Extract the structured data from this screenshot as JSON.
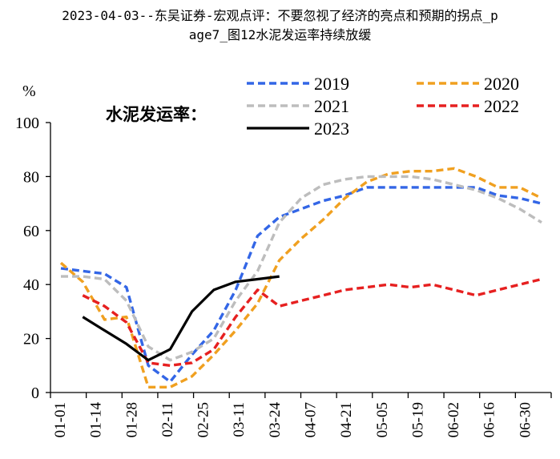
{
  "header": {
    "title_line1": "2023-04-03--东吴证券-宏观点评：不要忽视了经济的亮点和预期的拐点_p",
    "title_line2": "age7_图12水泥发运率持续放缓"
  },
  "chart_data": {
    "type": "line",
    "title": "水泥发运率：",
    "ylabel": "%",
    "xlabel": "",
    "ylim": [
      0,
      100
    ],
    "yticks": [
      0,
      20,
      40,
      60,
      80,
      100
    ],
    "xlim": [
      0,
      22
    ],
    "x_ticks": [
      "01-01",
      "01-14",
      "01-28",
      "02-11",
      "02-25",
      "03-11",
      "03-24",
      "04-07",
      "04-21",
      "05-05",
      "05-19",
      "06-02",
      "06-16",
      "06-30"
    ],
    "grid": false,
    "legend": "top",
    "series": [
      {
        "name": "2019",
        "color": "#3366e6",
        "style": "dashed",
        "x": [
          0,
          1,
          2,
          3,
          4,
          5,
          6,
          7,
          8,
          9,
          10,
          11,
          12,
          13,
          14,
          15,
          16,
          17,
          18,
          19,
          20,
          21,
          22
        ],
        "y": [
          46,
          45,
          44,
          39,
          10,
          4,
          14,
          23,
          38,
          58,
          65,
          68,
          71,
          73,
          76,
          76,
          76,
          76,
          76,
          76,
          73,
          72,
          70
        ]
      },
      {
        "name": "2020",
        "color": "#f0a020",
        "style": "dashed",
        "x": [
          0,
          1,
          2,
          3,
          4,
          5,
          6,
          7,
          8,
          9,
          10,
          11,
          12,
          13,
          14,
          15,
          16,
          17,
          18,
          19,
          20,
          21,
          22
        ],
        "y": [
          48,
          41,
          27,
          28,
          2,
          2,
          6,
          14,
          23,
          33,
          49,
          57,
          64,
          72,
          78,
          81,
          82,
          82,
          83,
          80,
          76,
          76,
          72
        ]
      },
      {
        "name": "2021",
        "color": "#bdbdbd",
        "style": "dashed",
        "x": [
          0,
          1,
          2,
          3,
          4,
          5,
          6,
          7,
          8,
          9,
          10,
          11,
          12,
          13,
          14,
          15,
          16,
          17,
          18,
          19,
          20,
          21,
          22
        ],
        "y": [
          43,
          43,
          42,
          34,
          17,
          12,
          15,
          20,
          34,
          45,
          63,
          72,
          77,
          79,
          80,
          80,
          80,
          79,
          77,
          75,
          72,
          68,
          63
        ]
      },
      {
        "name": "2022",
        "color": "#e62020",
        "style": "dashed",
        "x": [
          1,
          2,
          3,
          4,
          5,
          6,
          7,
          8,
          9,
          10,
          11,
          12,
          13,
          14,
          15,
          16,
          17,
          18,
          19,
          20,
          21,
          22
        ],
        "y": [
          36,
          32,
          26,
          11,
          10,
          11,
          16,
          28,
          38,
          32,
          34,
          36,
          38,
          39,
          40,
          39,
          40,
          38,
          36,
          38,
          40,
          42
        ]
      },
      {
        "name": "2023",
        "color": "#000000",
        "style": "solid",
        "x": [
          1,
          2,
          3,
          4,
          5,
          6,
          7,
          8,
          9,
          10
        ],
        "y": [
          28,
          23,
          18,
          12,
          16,
          30,
          38,
          41,
          42,
          43
        ]
      }
    ]
  }
}
